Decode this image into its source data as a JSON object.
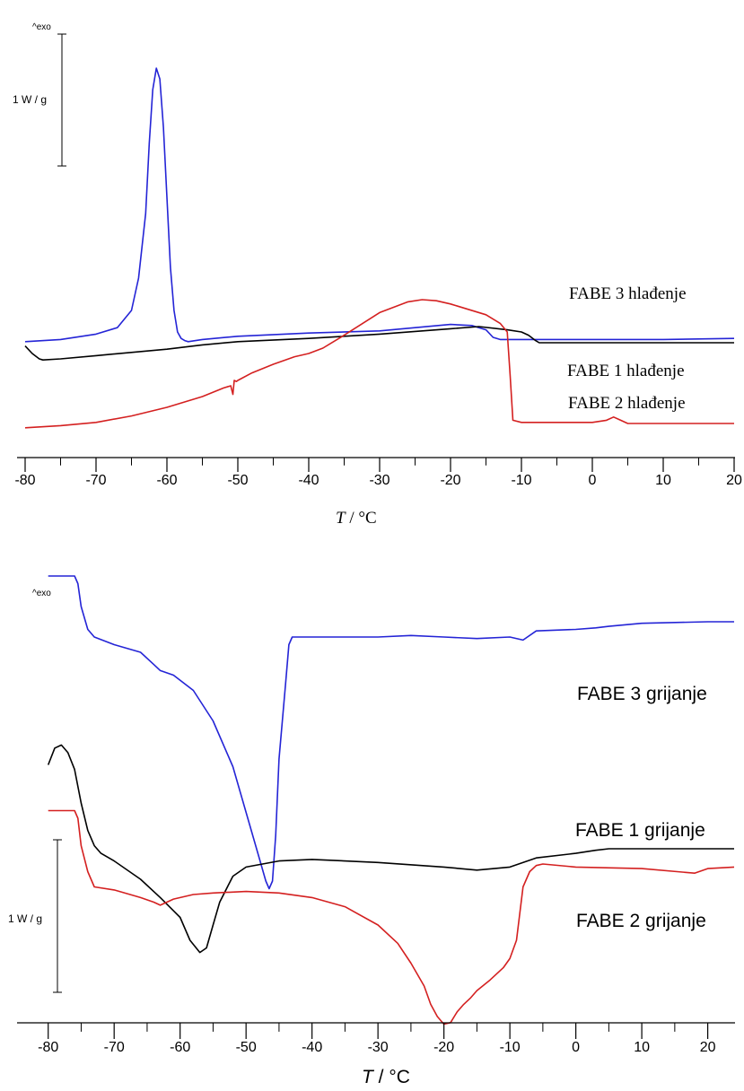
{
  "chart_data": [
    {
      "type": "line",
      "xlabel_italic": "T",
      "xlabel_unit": " / °C",
      "xlim": [
        -80,
        20
      ],
      "x_ticks": [
        -80,
        -70,
        -60,
        -50,
        -40,
        -30,
        -20,
        -10,
        0,
        10,
        20
      ],
      "exo_label": "^exo",
      "scale_label": "1 W / g",
      "series": [
        {
          "name": "FABE 3 hlađenje",
          "color": "#2424d6",
          "x": [
            -80,
            -75,
            -70,
            -67,
            -65,
            -64,
            -63,
            -62.5,
            -62,
            -61.5,
            -61,
            -60.5,
            -60,
            -59.5,
            -59,
            -58.5,
            -58,
            -57.5,
            -57,
            -55,
            -50,
            -40,
            -30,
            -25,
            -20,
            -17,
            -15,
            -14,
            -13,
            -10,
            0,
            10,
            20
          ],
          "y": [
            0.01,
            0.03,
            0.08,
            0.14,
            0.3,
            0.6,
            1.2,
            1.85,
            2.35,
            2.55,
            2.45,
            2.0,
            1.35,
            0.7,
            0.3,
            0.1,
            0.04,
            0.02,
            0.01,
            0.03,
            0.06,
            0.09,
            0.11,
            0.14,
            0.17,
            0.16,
            0.12,
            0.05,
            0.03,
            0.03,
            0.03,
            0.03,
            0.04
          ]
        },
        {
          "name": "FABE 1 hlađenje",
          "color": "#000000",
          "x": [
            -80,
            -79,
            -78,
            -77.5,
            -75,
            -70,
            -60,
            -55,
            -50,
            -40,
            -30,
            -20,
            -16,
            -12,
            -10,
            -9,
            -8,
            -7.5,
            -5,
            0,
            10,
            20
          ],
          "y": [
            -0.03,
            -0.1,
            -0.15,
            -0.16,
            -0.15,
            -0.12,
            -0.06,
            -0.02,
            0.01,
            0.04,
            0.08,
            0.13,
            0.15,
            0.12,
            0.1,
            0.07,
            0.02,
            0,
            0,
            0,
            0,
            0
          ]
        },
        {
          "name": "FABE 2 hlađenje",
          "color": "#d42020",
          "x": [
            -80,
            -75,
            -70,
            -65,
            -60,
            -55,
            -52,
            -51,
            -50.7,
            -50.5,
            -50.2,
            -50,
            -48,
            -45,
            -42,
            -40,
            -38,
            -35,
            -30,
            -26,
            -24,
            -22,
            -20,
            -15,
            -13,
            -12,
            -11.6,
            -11.2,
            -10,
            -5,
            0,
            2,
            3,
            4,
            5,
            10,
            20
          ],
          "y": [
            0.01,
            0.03,
            0.06,
            0.12,
            0.2,
            0.3,
            0.38,
            0.4,
            0.32,
            0.45,
            0.44,
            0.45,
            0.52,
            0.6,
            0.67,
            0.7,
            0.75,
            0.87,
            1.08,
            1.18,
            1.2,
            1.19,
            1.16,
            1.06,
            0.98,
            0.9,
            0.5,
            0.08,
            0.06,
            0.06,
            0.06,
            0.08,
            0.11,
            0.08,
            0.05,
            0.05,
            0.05
          ]
        }
      ]
    },
    {
      "type": "line",
      "xlabel_italic": "T",
      "xlabel_unit": " / °C",
      "xlim": [
        -82,
        24
      ],
      "x_ticks": [
        -80,
        -70,
        -60,
        -50,
        -40,
        -30,
        -20,
        -10,
        0,
        10,
        20
      ],
      "exo_label": "^exo",
      "scale_label": "1 W / g",
      "series": [
        {
          "name": "FABE 3 grijanje",
          "color": "#2424d6",
          "x": [
            -80,
            -76,
            -75.5,
            -75,
            -74,
            -73,
            -70,
            -66,
            -64,
            -63,
            -61,
            -58,
            -55,
            -52,
            -50,
            -48,
            -47,
            -46.5,
            -46,
            -45.5,
            -45,
            -44,
            -43.5,
            -43,
            -40,
            -35,
            -30,
            -25,
            -20,
            -15,
            -10,
            -8,
            -6,
            0,
            3,
            5,
            10,
            20,
            24
          ],
          "y": [
            0.4,
            0.4,
            0.35,
            0.2,
            0.05,
            0,
            -0.05,
            -0.1,
            -0.18,
            -0.22,
            -0.25,
            -0.35,
            -0.55,
            -0.85,
            -1.15,
            -1.45,
            -1.6,
            -1.65,
            -1.6,
            -1.3,
            -0.8,
            -0.3,
            -0.05,
            0,
            0,
            0,
            0,
            0.01,
            0,
            -0.01,
            0,
            -0.02,
            0.04,
            0.05,
            0.06,
            0.07,
            0.09,
            0.1,
            0.1
          ]
        },
        {
          "name": "FABE 1 grijanje",
          "color": "#000000",
          "x": [
            -80,
            -79,
            -78,
            -77,
            -76,
            -75,
            -74,
            -73,
            -72,
            -70,
            -66,
            -63,
            -60,
            -58.5,
            -57,
            -56,
            -55,
            -54,
            -52,
            -50,
            -45,
            -40,
            -30,
            -20,
            -15,
            -10,
            -6,
            0,
            3,
            5,
            10,
            20,
            24
          ],
          "y": [
            0.25,
            0.36,
            0.38,
            0.33,
            0.22,
            0.0,
            -0.18,
            -0.28,
            -0.33,
            -0.38,
            -0.5,
            -0.62,
            -0.75,
            -0.9,
            -0.98,
            -0.95,
            -0.8,
            -0.65,
            -0.48,
            -0.42,
            -0.38,
            -0.37,
            -0.39,
            -0.42,
            -0.44,
            -0.42,
            -0.36,
            -0.33,
            -0.31,
            -0.3,
            -0.3,
            -0.3,
            -0.3
          ]
        },
        {
          "name": "FABE 2 grijanje",
          "color": "#d42020",
          "x": [
            -80,
            -76,
            -75.5,
            -75,
            -74,
            -73,
            -70,
            -66,
            -64,
            -63,
            -61,
            -58,
            -55,
            -50,
            -45,
            -40,
            -35,
            -30,
            -27,
            -25,
            -23,
            -22,
            -21,
            -20,
            -19,
            -18,
            -17,
            -16,
            -15,
            -13,
            -11,
            -10,
            -9,
            -8,
            -7,
            -6,
            -5,
            0,
            10,
            18,
            20,
            24
          ],
          "y": [
            0.85,
            0.85,
            0.8,
            0.62,
            0.45,
            0.35,
            0.33,
            0.28,
            0.25,
            0.23,
            0.27,
            0.3,
            0.31,
            0.32,
            0.31,
            0.28,
            0.22,
            0.1,
            -0.02,
            -0.15,
            -0.3,
            -0.42,
            -0.5,
            -0.55,
            -0.54,
            -0.47,
            -0.42,
            -0.38,
            -0.33,
            -0.26,
            -0.18,
            -0.12,
            0.0,
            0.35,
            0.45,
            0.49,
            0.5,
            0.48,
            0.47,
            0.44,
            0.47,
            0.48
          ]
        }
      ]
    }
  ]
}
